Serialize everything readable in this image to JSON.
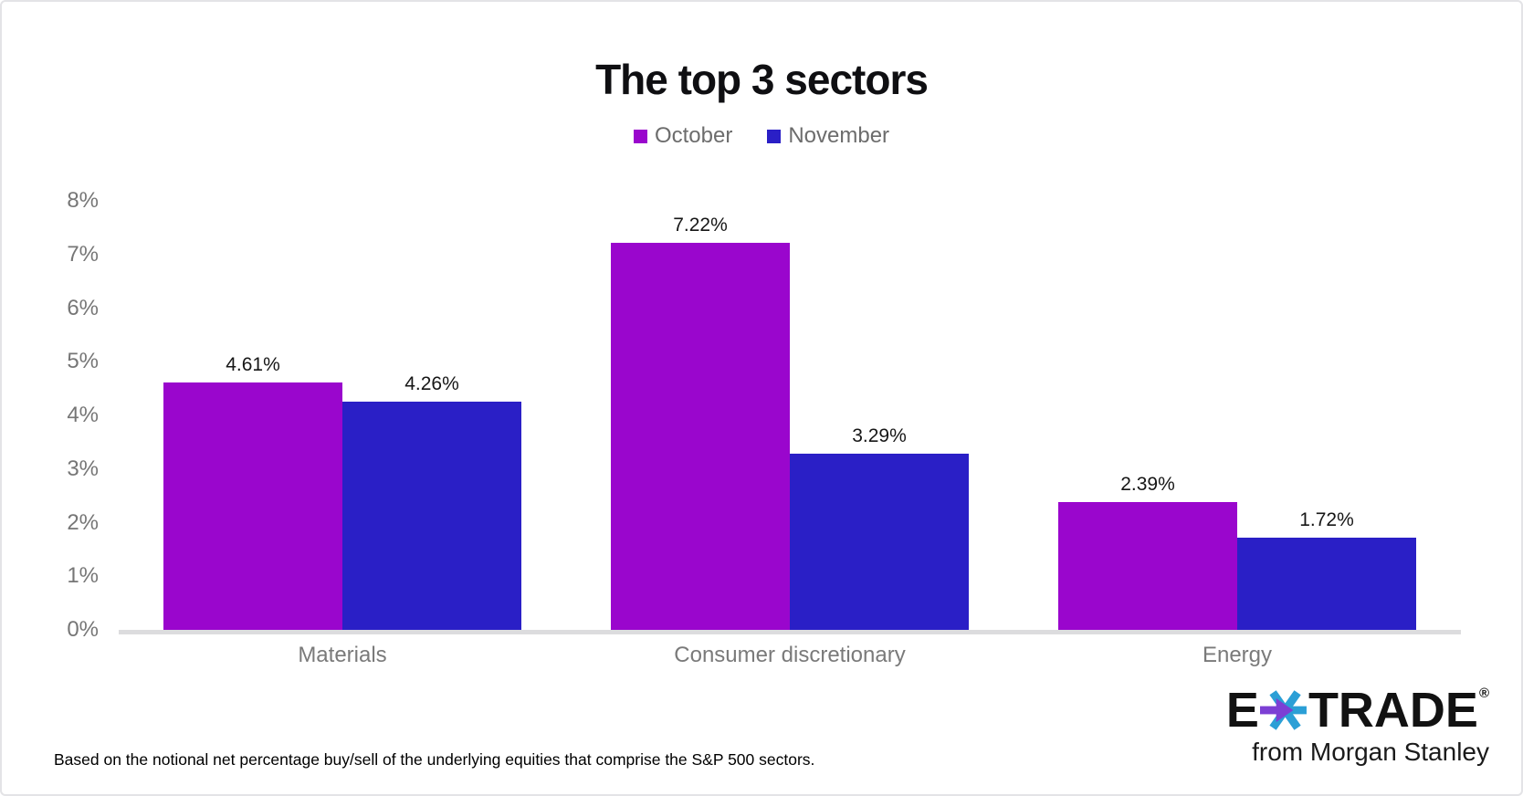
{
  "page": {
    "footnote": "Based on the notional net percentage buy/sell of the underlying equities that comprise the S&P 500 sectors.",
    "logo": {
      "brand_left": "E",
      "brand_right": "TRADE",
      "registered": "®",
      "tagline": "from Morgan Stanley",
      "star_blue": "#2b9fd6",
      "star_purple": "#7c3fd4"
    }
  },
  "chart_data": {
    "type": "bar",
    "title": "The top 3 sectors",
    "categories": [
      "Materials",
      "Consumer discretionary",
      "Energy"
    ],
    "series": [
      {
        "name": "October",
        "color": "#9a06cd",
        "values": [
          4.61,
          7.22,
          2.39
        ],
        "labels": [
          "4.61%",
          "7.22%",
          "2.39%"
        ]
      },
      {
        "name": "November",
        "color": "#2a1fc6",
        "values": [
          4.26,
          3.29,
          1.72
        ],
        "labels": [
          "4.26%",
          "3.29%",
          "1.72%"
        ]
      }
    ],
    "xlabel": "",
    "ylabel": "",
    "ylim": [
      0,
      8
    ],
    "yticks": [
      0,
      1,
      2,
      3,
      4,
      5,
      6,
      7,
      8
    ],
    "ytick_labels": [
      "0%",
      "1%",
      "2%",
      "3%",
      "4%",
      "5%",
      "6%",
      "7%",
      "8%"
    ],
    "grid": false,
    "legend_position": "top"
  }
}
